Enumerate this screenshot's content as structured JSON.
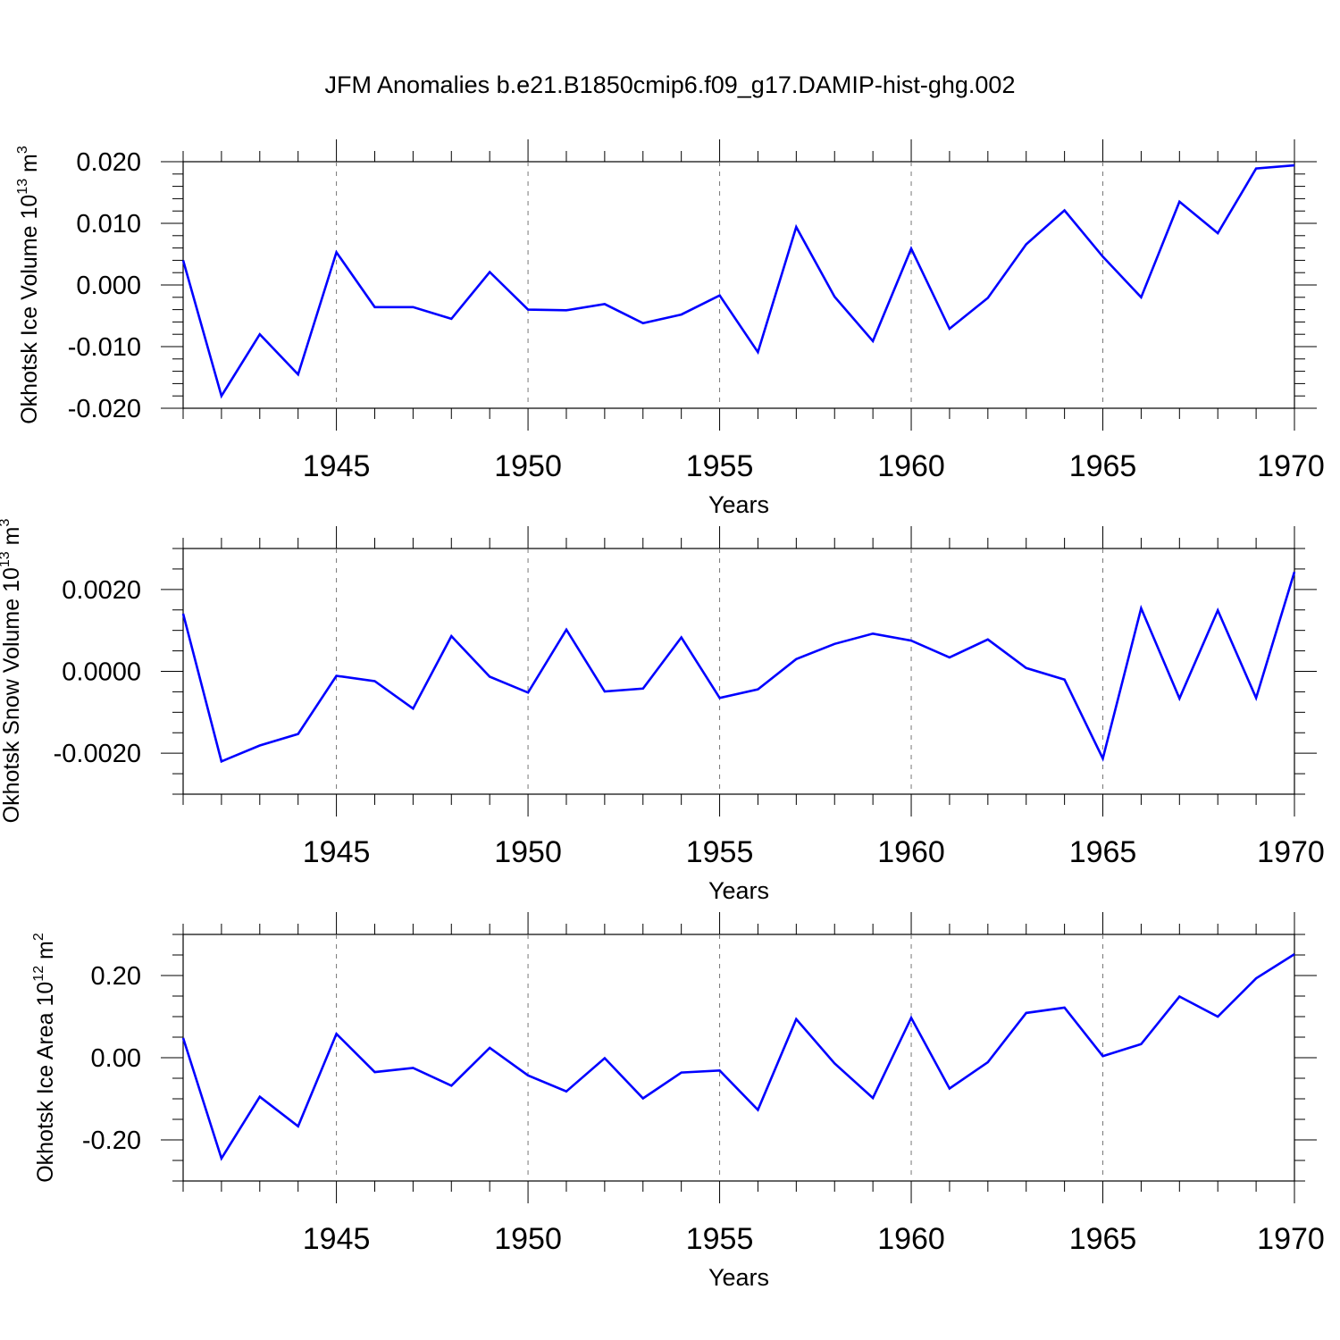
{
  "title": "JFM Anomalies b.e21.B1850cmip6.f09_g17.DAMIP-hist-ghg.002",
  "chart_data": [
    {
      "type": "line",
      "ylabel_main": "Okhotsk Ice Volume 10",
      "ylabel_exp": "13",
      "ylabel_unit": " m",
      "ylabel_unit_exp": "3",
      "xlabel": "Years",
      "xlim": [
        1941,
        1970
      ],
      "ylim": [
        -0.02,
        0.02
      ],
      "xticks": [
        "1945",
        "1950",
        "1955",
        "1960",
        "1965",
        "1970"
      ],
      "yticks": [
        "-0.020",
        "-0.010",
        "0.000",
        "0.010",
        "0.020"
      ],
      "x": [
        1941,
        1942,
        1943,
        1944,
        1945,
        1946,
        1947,
        1948,
        1949,
        1950,
        1951,
        1952,
        1953,
        1954,
        1955,
        1956,
        1957,
        1958,
        1959,
        1960,
        1961,
        1962,
        1963,
        1964,
        1965,
        1966,
        1967,
        1968,
        1969,
        1970
      ],
      "values": [
        0.004,
        -0.018,
        -0.008,
        -0.0145,
        0.0053,
        -0.0036,
        -0.0036,
        -0.0055,
        0.0021,
        -0.004,
        -0.0041,
        -0.0031,
        -0.0062,
        -0.0048,
        -0.0017,
        -0.0109,
        0.0094,
        -0.0019,
        -0.0091,
        0.0059,
        -0.0071,
        -0.0021,
        0.0066,
        0.0121,
        0.0046,
        -0.002,
        0.0135,
        0.0084,
        0.0189,
        0.0194
      ]
    },
    {
      "type": "line",
      "ylabel_main": "Okhotsk Snow Volume 10",
      "ylabel_exp": "13",
      "ylabel_unit": " m",
      "ylabel_unit_exp": "3",
      "xlabel": "Years",
      "xlim": [
        1941,
        1970
      ],
      "ylim": [
        -0.003,
        0.003
      ],
      "xticks": [
        "1945",
        "1950",
        "1955",
        "1960",
        "1965",
        "1970"
      ],
      "yticks": [
        "-0.0020",
        "0.0000",
        "0.0020"
      ],
      "x": [
        1941,
        1942,
        1943,
        1944,
        1945,
        1946,
        1947,
        1948,
        1949,
        1950,
        1951,
        1952,
        1953,
        1954,
        1955,
        1956,
        1957,
        1958,
        1959,
        1960,
        1961,
        1962,
        1963,
        1964,
        1965,
        1966,
        1967,
        1968,
        1969,
        1970
      ],
      "values": [
        0.00141,
        -0.0022,
        -0.00181,
        -0.00153,
        -0.00011,
        -0.00024,
        -0.00091,
        0.00086,
        -0.00013,
        -0.00052,
        0.00102,
        -0.00049,
        -0.00042,
        0.00083,
        -0.00065,
        -0.00044,
        0.0003,
        0.00067,
        0.00092,
        0.00075,
        0.00034,
        0.00078,
        8e-05,
        -0.0002,
        -0.00213,
        0.00154,
        -0.00066,
        0.00149,
        -0.00065,
        0.00243
      ]
    },
    {
      "type": "line",
      "ylabel_main": "Okhotsk Ice Area 10",
      "ylabel_exp": "12",
      "ylabel_unit": " m",
      "ylabel_unit_exp": "2",
      "xlabel": "Years",
      "xlim": [
        1941,
        1970
      ],
      "ylim": [
        -0.3,
        0.3
      ],
      "xticks": [
        "1945",
        "1950",
        "1955",
        "1960",
        "1965",
        "1970"
      ],
      "yticks": [
        "-0.20",
        "0.00",
        "0.20"
      ],
      "x": [
        1941,
        1942,
        1943,
        1944,
        1945,
        1946,
        1947,
        1948,
        1949,
        1950,
        1951,
        1952,
        1953,
        1954,
        1955,
        1956,
        1957,
        1958,
        1959,
        1960,
        1961,
        1962,
        1963,
        1964,
        1965,
        1966,
        1967,
        1968,
        1969,
        1970
      ],
      "values": [
        0.048,
        -0.245,
        -0.095,
        -0.167,
        0.058,
        -0.035,
        -0.025,
        -0.068,
        0.024,
        -0.043,
        -0.082,
        -0.001,
        -0.099,
        -0.036,
        -0.031,
        -0.127,
        0.094,
        -0.014,
        -0.098,
        0.097,
        -0.075,
        -0.011,
        0.109,
        0.122,
        0.004,
        0.033,
        0.149,
        0.1,
        0.193,
        0.252
      ]
    }
  ]
}
